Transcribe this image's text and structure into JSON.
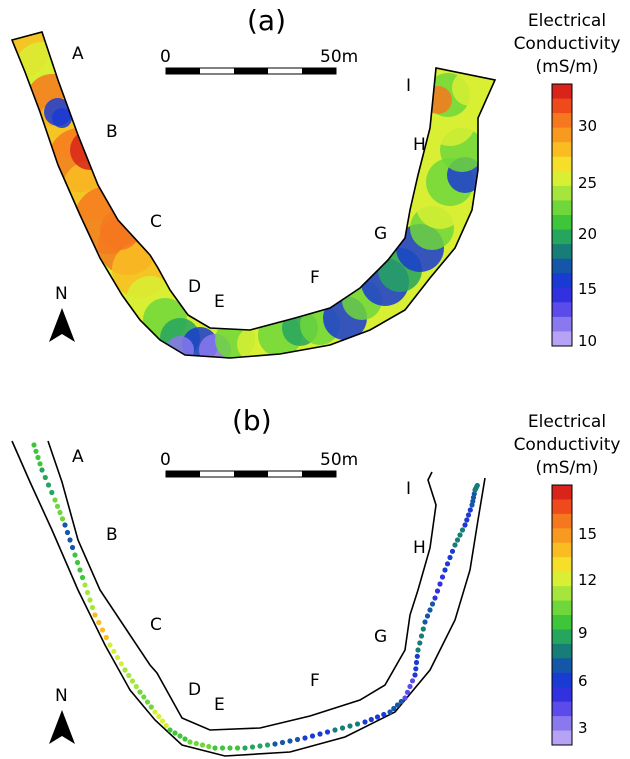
{
  "panels": [
    {
      "id": "a",
      "label": "(a)",
      "site_labels": [
        "A",
        "B",
        "C",
        "D",
        "E",
        "F",
        "G",
        "H",
        "I"
      ],
      "scale": {
        "start": "0",
        "end": "50m"
      },
      "north": "N",
      "legend": {
        "title_lines": [
          "Electrical",
          "Conductivity",
          "(mS/m)"
        ],
        "ticks": [
          "30",
          "25",
          "20",
          "15",
          "10"
        ],
        "colors": [
          "#d9241b",
          "#ef4a1c",
          "#f6781e",
          "#f89a20",
          "#f9bd22",
          "#f5df29",
          "#d8ef34",
          "#a6e63c",
          "#6fd73b",
          "#3fc539",
          "#26a55f",
          "#177e77",
          "#1456a8",
          "#1a3ad4",
          "#3131e0",
          "#5a4bea",
          "#8a78ef",
          "#b7a3f5"
        ]
      },
      "colormap_sample": [
        "#d9241b",
        "#f6781e",
        "#f9bd22",
        "#d8ef34",
        "#6fd73b",
        "#26a55f",
        "#1a3ad4",
        "#8a78ef"
      ]
    },
    {
      "id": "b",
      "label": "(b)",
      "site_labels": [
        "A",
        "B",
        "C",
        "D",
        "E",
        "F",
        "G",
        "H",
        "I"
      ],
      "scale": {
        "start": "0",
        "end": "50m"
      },
      "north": "N",
      "legend": {
        "title_lines": [
          "Electrical",
          "Conductivity",
          "(mS/m)"
        ],
        "ticks": [
          "15",
          "12",
          "9",
          "6",
          "3"
        ],
        "colors": [
          "#d9241b",
          "#ef4a1c",
          "#f6781e",
          "#f89a20",
          "#f9bd22",
          "#f5df29",
          "#d8ef34",
          "#a6e63c",
          "#6fd73b",
          "#3fc539",
          "#26a55f",
          "#177e77",
          "#1456a8",
          "#1a3ad4",
          "#3131e0",
          "#5a4bea",
          "#8a78ef",
          "#b7a3f5"
        ]
      }
    }
  ]
}
